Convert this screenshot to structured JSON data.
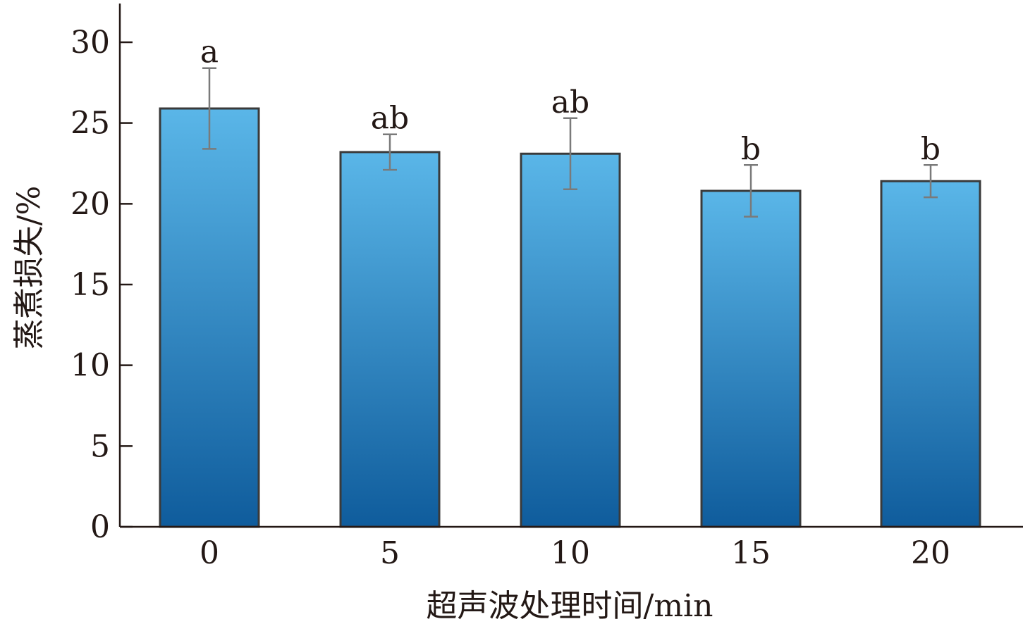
{
  "chart_data": {
    "type": "bar",
    "categories": [
      "0",
      "5",
      "10",
      "15",
      "20"
    ],
    "values": [
      25.9,
      23.2,
      23.1,
      20.8,
      21.4
    ],
    "errors": [
      2.5,
      1.1,
      2.2,
      1.6,
      1.0
    ],
    "significance": [
      "a",
      "ab",
      "ab",
      "b",
      "b"
    ],
    "title": "",
    "xlabel": "超声波处理时间/min",
    "ylabel": "蒸煮损失/%",
    "ylim": [
      0,
      30
    ],
    "yticks": [
      0,
      5,
      10,
      15,
      20,
      25,
      30
    ],
    "grid": false,
    "legend": "none",
    "colors": {
      "bar_top": "#5ab6e8",
      "bar_bottom": "#0f5c9c",
      "axis": "#231815",
      "error_bar": "#7a7a7a"
    }
  }
}
